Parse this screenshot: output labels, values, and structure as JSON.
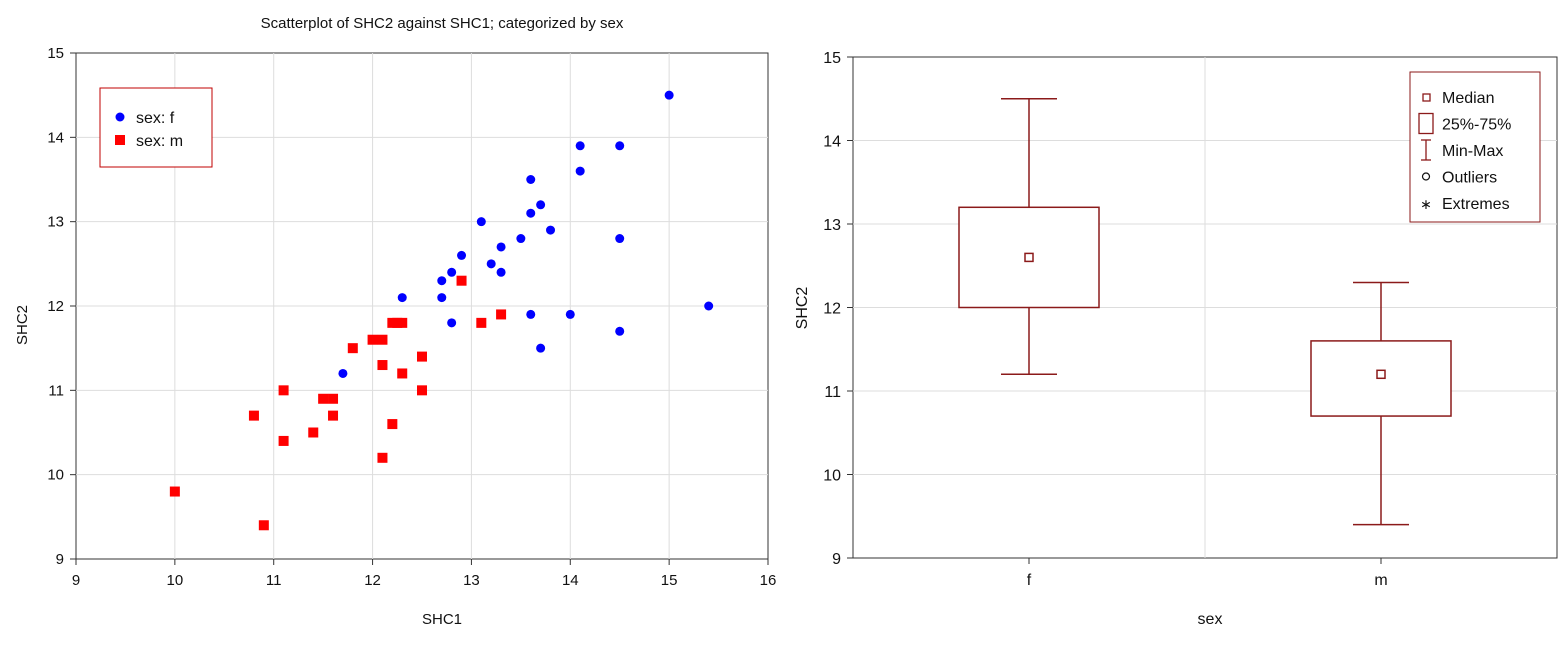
{
  "chart_data": [
    {
      "type": "scatter",
      "title": "Scatterplot of SHC2 against SHC1; categorized by sex",
      "xlabel": "SHC1",
      "ylabel": "SHC2",
      "xlim": [
        9,
        16
      ],
      "ylim": [
        9,
        15
      ],
      "xticks": [
        "9",
        "10",
        "11",
        "12",
        "13",
        "14",
        "15",
        "16"
      ],
      "yticks": [
        "9",
        "10",
        "11",
        "12",
        "13",
        "14",
        "15"
      ],
      "grid": true,
      "legend_position": "top-left",
      "series": [
        {
          "name": "sex: f",
          "color": "#0000ff",
          "marker": "circle",
          "points": [
            [
              15.0,
              14.5
            ],
            [
              14.1,
              13.9
            ],
            [
              14.5,
              13.9
            ],
            [
              14.1,
              13.6
            ],
            [
              13.6,
              13.5
            ],
            [
              13.7,
              13.2
            ],
            [
              13.1,
              13.0
            ],
            [
              13.6,
              13.1
            ],
            [
              13.8,
              12.9
            ],
            [
              14.5,
              12.8
            ],
            [
              13.5,
              12.8
            ],
            [
              13.3,
              12.7
            ],
            [
              12.9,
              12.6
            ],
            [
              13.2,
              12.5
            ],
            [
              12.8,
              12.4
            ],
            [
              13.3,
              12.4
            ],
            [
              12.7,
              12.3
            ],
            [
              12.3,
              12.1
            ],
            [
              12.7,
              12.1
            ],
            [
              15.4,
              12.0
            ],
            [
              13.6,
              11.9
            ],
            [
              14.0,
              11.9
            ],
            [
              12.8,
              11.8
            ],
            [
              14.5,
              11.7
            ],
            [
              13.7,
              11.5
            ],
            [
              11.7,
              11.2
            ]
          ]
        },
        {
          "name": "sex: m",
          "color": "#ff0000",
          "marker": "square",
          "points": [
            [
              12.9,
              12.3
            ],
            [
              13.3,
              11.9
            ],
            [
              12.2,
              11.8
            ],
            [
              12.25,
              11.8
            ],
            [
              12.3,
              11.8
            ],
            [
              13.1,
              11.8
            ],
            [
              12.0,
              11.6
            ],
            [
              12.1,
              11.6
            ],
            [
              11.8,
              11.5
            ],
            [
              12.5,
              11.4
            ],
            [
              12.1,
              11.3
            ],
            [
              12.3,
              11.2
            ],
            [
              11.1,
              11.0
            ],
            [
              12.5,
              11.0
            ],
            [
              11.5,
              10.9
            ],
            [
              11.6,
              10.9
            ],
            [
              10.8,
              10.7
            ],
            [
              11.6,
              10.7
            ],
            [
              12.2,
              10.6
            ],
            [
              11.4,
              10.5
            ],
            [
              11.1,
              10.4
            ],
            [
              12.1,
              10.2
            ],
            [
              10.0,
              9.8
            ],
            [
              10.9,
              9.4
            ]
          ]
        }
      ]
    },
    {
      "type": "box",
      "title": "",
      "xlabel": "sex",
      "ylabel": "SHC2",
      "ylim": [
        9,
        15
      ],
      "yticks": [
        "9",
        "10",
        "11",
        "12",
        "13",
        "14",
        "15"
      ],
      "grid": true,
      "legend_position": "top-right",
      "color": "#8b1a1a",
      "categories": [
        "f",
        "m"
      ],
      "boxes": [
        {
          "category": "f",
          "min": 11.2,
          "q1": 12.0,
          "median": 12.6,
          "q3": 13.2,
          "max": 14.5
        },
        {
          "category": "m",
          "min": 9.4,
          "q1": 10.7,
          "median": 11.2,
          "q3": 11.6,
          "max": 12.3
        }
      ],
      "legend": [
        {
          "symbol": "median",
          "label": "Median"
        },
        {
          "symbol": "box",
          "label": "25%-75%"
        },
        {
          "symbol": "whisker",
          "label": "Min-Max"
        },
        {
          "symbol": "outlier",
          "label": "Outliers"
        },
        {
          "symbol": "extreme",
          "label": "Extremes"
        }
      ]
    }
  ]
}
